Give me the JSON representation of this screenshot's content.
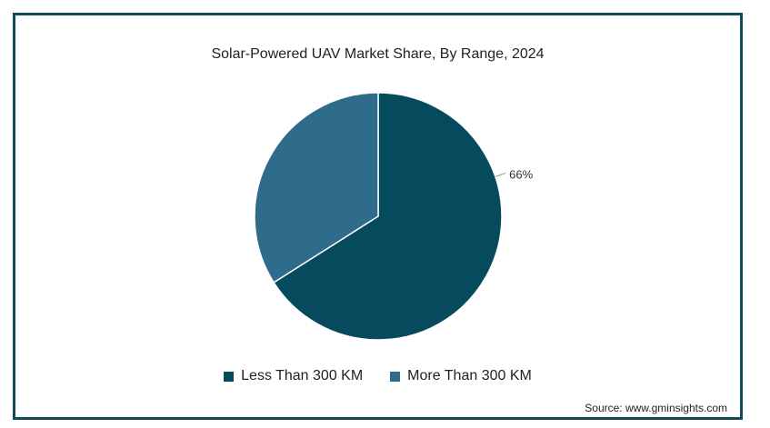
{
  "chart_data": {
    "type": "pie",
    "title": "Solar-Powered UAV Market Share, By Range, 2024",
    "slices": [
      {
        "name": "Less Than 300 KM",
        "value": 66,
        "label": "66%",
        "color": "#064a5e"
      },
      {
        "name": "More Than 300 KM",
        "value": 34,
        "label": "",
        "color": "#2f6b8a"
      }
    ],
    "legend_position": "bottom",
    "source": "Source: www.gminsights.com"
  }
}
